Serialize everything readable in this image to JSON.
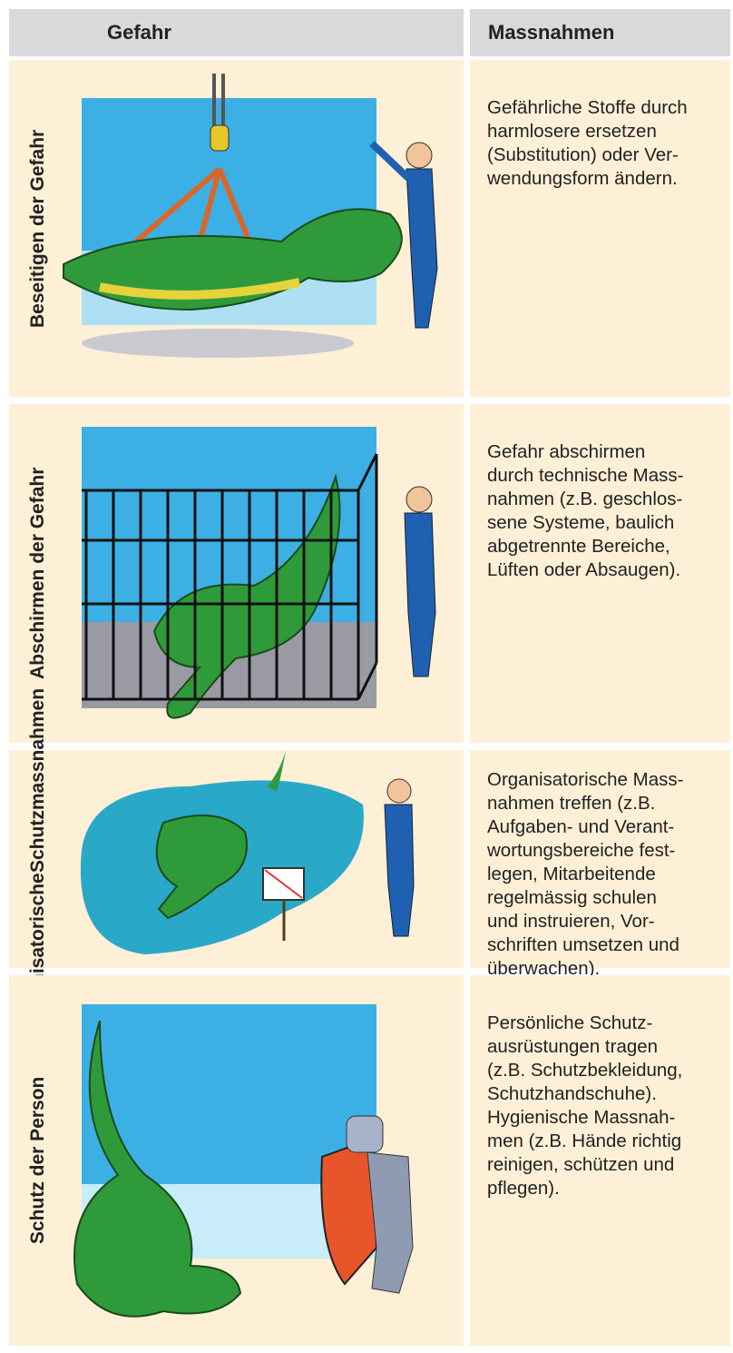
{
  "table": {
    "header": [
      "Gefahr",
      "Massnahmen"
    ],
    "rows": [
      {
        "label": [
          "Beseitigen der Gefahr"
        ],
        "description": [
          "Gefährliche Stoffe durch",
          "harmlosere ersetzen",
          "(Substitution) oder Ver-",
          "wendungsform ändern."
        ]
      },
      {
        "label": [
          "Abschirmen der Gefahr"
        ],
        "description": [
          "Gefahr abschirmen",
          "durch technische Mass-",
          "nahmen (z.B. geschlos-",
          "sene Systeme, baulich",
          "abgetrennte Bereiche,",
          "Lüften oder Absaugen)."
        ]
      },
      {
        "label": [
          "Organisatorische",
          "Schutzmassnahmen"
        ],
        "description": [
          "Organisatorische Mass-",
          "nahmen treffen (z.B.",
          "Aufgaben- und Verant-",
          "wortungsbereiche fest-",
          "legen, Mitarbeitende",
          "regelmässig schulen",
          "und instruieren, Vor-",
          "schriften umsetzen und",
          "überwachen)."
        ]
      },
      {
        "label": [
          "Schutz der Person"
        ],
        "description": [
          "Persönliche Schutz-",
          "ausrüstungen tragen",
          "(z.B. Schutzbekleidung,",
          "Schutzhandschuhe).",
          "Hygienische Massnah-",
          "men (z.B. Hände richtig",
          "reinigen, schützen und",
          "pflegen)."
        ]
      }
    ]
  }
}
